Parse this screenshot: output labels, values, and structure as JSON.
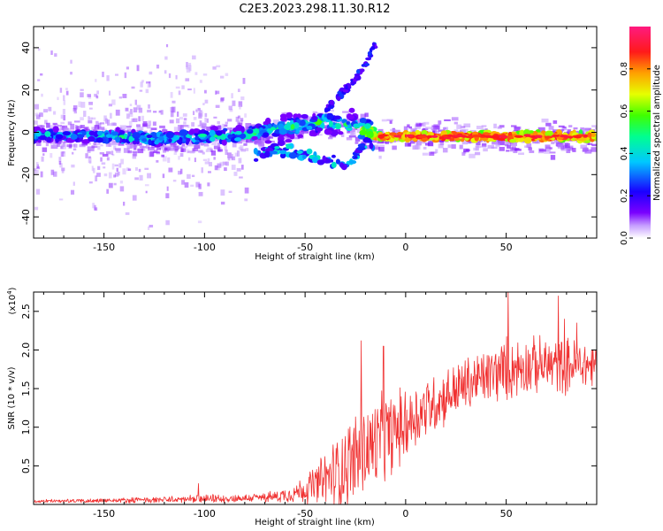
{
  "title": "C2E3.2023.298.11.30.R12",
  "colorbar": {
    "label": "Normalized spectral amplitude",
    "ticks": [
      0.0,
      0.2,
      0.4,
      0.6,
      0.8
    ],
    "tick_labels": [
      "0.0",
      "0.2",
      "0.4",
      "0.6",
      "0.8"
    ],
    "range": [
      0,
      1
    ],
    "colormap": [
      "#ffffff",
      "#7a00ff",
      "#0000ff",
      "#00ffff",
      "#00ff00",
      "#ffff00",
      "#ff8000",
      "#ff0000",
      "#ff1a80"
    ]
  },
  "chart_data": [
    {
      "type": "heatmap",
      "name": "spectrogram",
      "xlabel": "Height of straight line (km)",
      "ylabel": "Frequency (Hz)",
      "xlim": [
        -185,
        95
      ],
      "ylim": [
        -50,
        50
      ],
      "xticks": [
        -150,
        -100,
        -50,
        0,
        50
      ],
      "xtick_labels": [
        "-150",
        "-100",
        "-50",
        "0",
        "50"
      ],
      "yticks": [
        -40,
        -20,
        0,
        20,
        40
      ],
      "ytick_labels": [
        "-40",
        "-20",
        "0",
        "20",
        "40"
      ],
      "ridge": {
        "description": "main echo band near 0 Hz",
        "x": [
          -185,
          -150,
          -120,
          -100,
          -80,
          -60,
          -40,
          -25,
          -15,
          0,
          25,
          50,
          75,
          95
        ],
        "freq": [
          -1,
          -2,
          -3,
          -2,
          -1,
          2,
          5,
          3,
          -2,
          -2,
          -2,
          -2,
          -2,
          -2
        ],
        "amplitude": [
          0.35,
          0.4,
          0.4,
          0.4,
          0.45,
          0.45,
          0.5,
          0.45,
          0.8,
          0.85,
          0.85,
          0.85,
          0.85,
          0.8
        ]
      },
      "upper_branch": {
        "x": [
          -40,
          -30,
          -20,
          -15
        ],
        "freq": [
          10,
          20,
          32,
          42
        ]
      },
      "lower_branch": {
        "x": [
          -75,
          -60,
          -45,
          -30,
          -20
        ],
        "freq": [
          -10,
          -8,
          -12,
          -16,
          -6
        ]
      }
    },
    {
      "type": "line",
      "name": "snr",
      "xlabel": "Height of straight line (km)",
      "ylabel": "SNR (10 * v/v)",
      "multiplier_label": "(x10",
      "multiplier_exp": "4",
      "multiplier_close": ")",
      "xlim": [
        -185,
        95
      ],
      "ylim": [
        0,
        2.75
      ],
      "xticks": [
        -150,
        -100,
        -50,
        0,
        50
      ],
      "xtick_labels": [
        "-150",
        "-100",
        "-50",
        "0",
        "50"
      ],
      "yticks": [
        0.5,
        1.0,
        1.5,
        2.0,
        2.5
      ],
      "ytick_labels": [
        "0.5",
        "1.0",
        "1.5",
        "2.0",
        "2.5"
      ],
      "color": "#f03030",
      "envelope": {
        "x": [
          -185,
          -150,
          -120,
          -100,
          -80,
          -65,
          -55,
          -45,
          -35,
          -28,
          -20,
          -10,
          0,
          10,
          20,
          30,
          40,
          50,
          60,
          70,
          80,
          95
        ],
        "mean": [
          0.04,
          0.05,
          0.06,
          0.07,
          0.08,
          0.1,
          0.15,
          0.25,
          0.4,
          0.55,
          0.7,
          0.85,
          1.05,
          1.25,
          1.4,
          1.55,
          1.65,
          1.75,
          1.8,
          1.8,
          1.8,
          1.8
        ],
        "spread": [
          0.02,
          0.03,
          0.04,
          0.05,
          0.05,
          0.07,
          0.12,
          0.25,
          0.45,
          0.55,
          0.6,
          0.55,
          0.45,
          0.4,
          0.35,
          0.35,
          0.35,
          0.4,
          0.35,
          0.35,
          0.35,
          0.3
        ]
      },
      "peaks": [
        {
          "x": -103,
          "y": 0.27
        },
        {
          "x": -22,
          "y": 2.12
        },
        {
          "x": -11,
          "y": 2.05
        },
        {
          "x": 51,
          "y": 2.75
        },
        {
          "x": 76,
          "y": 2.7
        },
        {
          "x": 79,
          "y": 2.4
        },
        {
          "x": 85,
          "y": 2.35
        }
      ]
    }
  ]
}
